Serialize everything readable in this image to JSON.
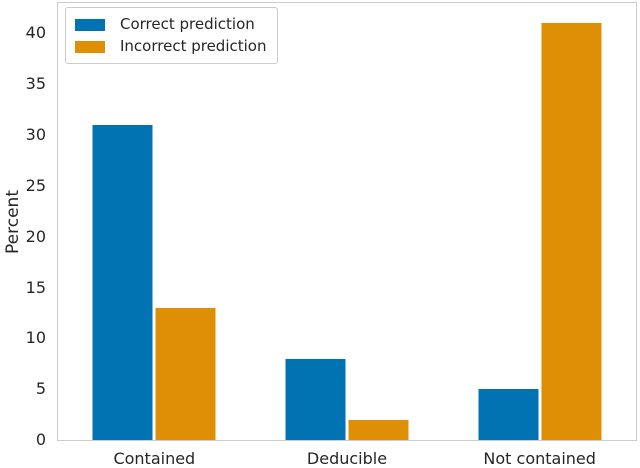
{
  "chart_data": {
    "type": "bar",
    "title": "",
    "xlabel": "",
    "ylabel": "Percent",
    "categories": [
      "Contained",
      "Deducible",
      "Not contained"
    ],
    "series": [
      {
        "name": "Correct prediction",
        "color": "#0173b2",
        "values": [
          31,
          8,
          5
        ]
      },
      {
        "name": "Incorrect prediction",
        "color": "#de8f05",
        "values": [
          13,
          2,
          41
        ]
      }
    ],
    "ylim": [
      0,
      43
    ],
    "yticks": [
      0,
      5,
      10,
      15,
      20,
      25,
      30,
      35,
      40
    ],
    "grid": false,
    "legend_position": "upper-left"
  }
}
